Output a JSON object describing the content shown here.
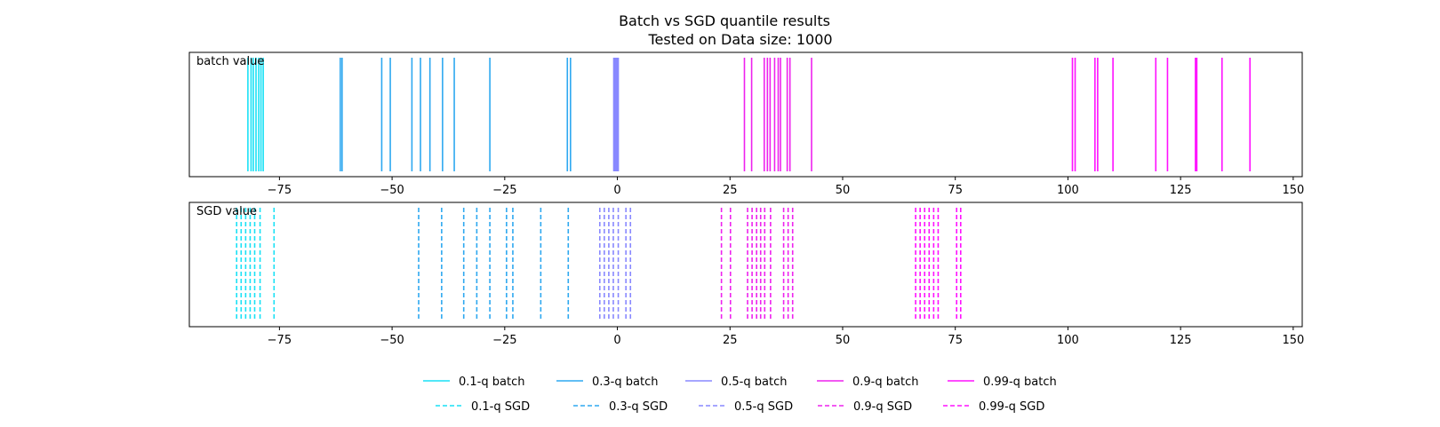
{
  "chart_data": {
    "type": "rug",
    "title": "Batch vs SGD quantile results",
    "subtitle": "Tested on Data size: 1000",
    "xlim": [
      -95,
      152
    ],
    "xticks": [
      -75,
      -50,
      -25,
      0,
      25,
      50,
      75,
      100,
      125,
      150
    ],
    "xtick_labels": [
      "−75",
      "−50",
      "−25",
      "0",
      "25",
      "50",
      "75",
      "100",
      "125",
      "150"
    ],
    "grid": false,
    "legend_position": "bottom-center",
    "panels": [
      {
        "label": "batch value",
        "line_style": "solid",
        "series": [
          {
            "name": "0.1-q batch",
            "color": "#19e1f5",
            "values": [
              -82.0,
              -81.3,
              -80.8,
              -80.2,
              -79.6,
              -79.1,
              -78.6
            ]
          },
          {
            "name": "0.3-q batch",
            "color": "#2ea8f0",
            "values": [
              -61.5,
              -61.1,
              -52.3,
              -50.4,
              -45.6,
              -43.7,
              -41.6,
              -38.8,
              -36.2,
              -28.3,
              -11.1,
              -10.4
            ]
          },
          {
            "name": "0.5-q batch",
            "color": "#8888ff",
            "values": [
              -0.8,
              -0.6,
              -0.4,
              -0.2,
              0.0,
              0.2
            ]
          },
          {
            "name": "0.9-q batch",
            "color": "#ee22ee",
            "values": [
              28.2,
              29.8,
              32.6,
              33.3,
              33.9,
              34.9,
              35.7,
              36.2,
              37.7,
              38.3,
              43.1
            ]
          },
          {
            "name": "0.99-q batch",
            "color": "#ff11ff",
            "values": [
              101.0,
              101.6,
              106.0,
              106.6,
              110.0,
              119.5,
              122.1,
              128.3,
              128.6,
              134.2,
              140.4
            ]
          }
        ]
      },
      {
        "label": "SGD value",
        "line_style": "dashed",
        "series": [
          {
            "name": "0.1-q SGD",
            "color": "#19e1f5",
            "values": [
              -84.5,
              -83.5,
              -82.5,
              -81.5,
              -80.5,
              -79.3,
              -76.2
            ]
          },
          {
            "name": "0.3-q SGD",
            "color": "#2ea8f0",
            "values": [
              -44.1,
              -39.0,
              -34.1,
              -31.2,
              -28.3,
              -24.6,
              -23.2,
              -17.0,
              -10.9
            ]
          },
          {
            "name": "0.5-q SGD",
            "color": "#8888ff",
            "values": [
              -3.9,
              -2.9,
              -1.9,
              -0.9,
              0.2,
              1.9,
              2.9
            ]
          },
          {
            "name": "0.9-q SGD",
            "color": "#ee22ee",
            "values": [
              23.1,
              25.1,
              28.9,
              29.9,
              30.9,
              31.8,
              32.7,
              34.0,
              36.9,
              37.9,
              38.9
            ]
          },
          {
            "name": "0.99-q SGD",
            "color": "#ff11ff",
            "values": [
              66.2,
              67.2,
              68.2,
              69.2,
              70.2,
              71.2,
              75.3,
              76.2
            ]
          }
        ]
      }
    ]
  }
}
